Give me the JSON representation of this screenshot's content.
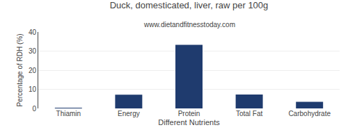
{
  "chart_data": {
    "type": "bar",
    "title": "Duck, domesticated, liver, raw per 100g",
    "subtitle": "www.dietandfitnesstoday.com",
    "xlabel": "Different Nutrients",
    "ylabel": "Percentage of RDH (%)",
    "categories": [
      "Thiamin",
      "Energy",
      "Protein",
      "Total Fat",
      "Carbohydrate"
    ],
    "values": [
      0.3,
      7.2,
      33.3,
      7.3,
      3.5
    ],
    "color": "#1f3b6e",
    "ylim": [
      0,
      40
    ],
    "yticks": [
      0,
      10,
      20,
      30,
      40
    ],
    "grid": true
  }
}
